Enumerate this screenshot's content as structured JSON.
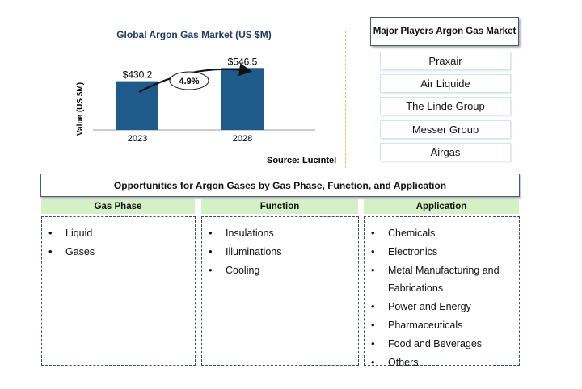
{
  "chart_data": {
    "type": "bar",
    "title": "Global Argon Gas Market (US $M)",
    "ylabel": "Value (US $M)",
    "xlabel": "",
    "categories": [
      "2023",
      "2028"
    ],
    "values": [
      430.2,
      546.5
    ],
    "data_labels": [
      "$430.2",
      "$546.5"
    ],
    "cagr_label": "4.9%",
    "ylim": [
      0,
      600
    ],
    "grid": false,
    "legend": "none",
    "bar_color": "#1f5b8a"
  },
  "source": "Source: Lucintel",
  "players": {
    "title": "Major Players Argon Gas Market",
    "items": [
      "Praxair",
      "Air Liquide",
      "The Linde Group",
      "Messer Group",
      "Airgas"
    ]
  },
  "opportunities": {
    "title": "Opportunities for Argon Gases by Gas Phase, Function, and Application",
    "columns": [
      {
        "header": "Gas Phase",
        "items": [
          "Liquid",
          "Gases"
        ]
      },
      {
        "header": "Function",
        "items": [
          "Insulations",
          "Illuminations",
          "Cooling"
        ]
      },
      {
        "header": "Application",
        "items": [
          "Chemicals",
          "Electronics",
          "Metal Manufacturing and Fabrications",
          "Power and Energy",
          "Pharmaceuticals",
          "Food and Beverages",
          "Others"
        ]
      }
    ]
  }
}
